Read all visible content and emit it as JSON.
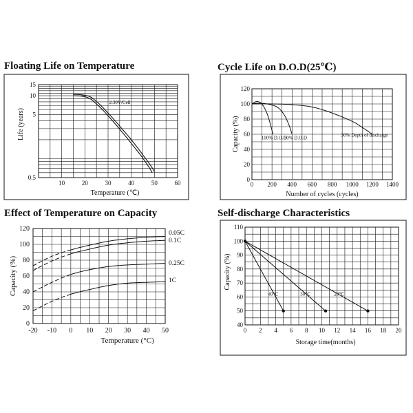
{
  "chart_data": [
    {
      "type": "line",
      "title": "Floating Life on Temperature",
      "xlabel": "Temperature (℃)",
      "ylabel": "Life (years)",
      "yscale": "log",
      "xlim": [
        0,
        60
      ],
      "ylim": [
        0.5,
        15
      ],
      "xticks": [
        "10",
        "20",
        "30",
        "40",
        "50",
        "60"
      ],
      "yticks": [
        "0.5",
        "5",
        "10",
        "15"
      ],
      "series": [
        {
          "name": "2.30V/Cell (upper)",
          "x": [
            15,
            17,
            19,
            21,
            23,
            25,
            30,
            35,
            40,
            45,
            50
          ],
          "y": [
            10.5,
            10.45,
            10.3,
            10.0,
            9.3,
            8.1,
            5.3,
            3.3,
            2.0,
            1.15,
            0.62
          ]
        },
        {
          "name": "2.30V/Cell (lower)",
          "x": [
            15,
            17,
            19,
            21,
            23,
            25,
            30,
            35,
            40,
            45,
            49
          ],
          "y": [
            10.0,
            9.95,
            9.8,
            9.4,
            8.6,
            7.4,
            4.8,
            2.95,
            1.75,
            1.02,
            0.6
          ]
        }
      ],
      "annotations": [
        "2.30V/Cell"
      ]
    },
    {
      "type": "line",
      "title": "Cycle Life on D.O.D(25℃)",
      "xlabel": "Number of cycles (cycles)",
      "ylabel": "Capacity (%)",
      "xlim": [
        0,
        1400
      ],
      "ylim": [
        0,
        120
      ],
      "xticks": [
        "0",
        "200",
        "400",
        "600",
        "800",
        "1000",
        "1200",
        "1400"
      ],
      "yticks": [
        "0",
        "20",
        "40",
        "60",
        "80",
        "100",
        "120"
      ],
      "series": [
        {
          "name": "100% D.O.D",
          "x": [
            0,
            40,
            80,
            120,
            160,
            190,
            210
          ],
          "y": [
            100,
            103,
            102,
            96,
            84,
            70,
            60
          ]
        },
        {
          "name": "50% D.O.D",
          "x": [
            0,
            60,
            150,
            250,
            320,
            370,
            400
          ],
          "y": [
            100,
            101,
            100,
            96,
            86,
            72,
            60
          ]
        },
        {
          "name": "30% Depth of discharge",
          "x": [
            0,
            200,
            400,
            600,
            800,
            1000,
            1100,
            1200
          ],
          "y": [
            100,
            100,
            99,
            96,
            88,
            77,
            69,
            60
          ]
        }
      ],
      "annotations": [
        "100% D.O.D",
        "50% D.O.D",
        "30% Depth of discharge"
      ]
    },
    {
      "type": "line",
      "title": "Effect of Temperature on Capacity",
      "xlabel": "Temperature (°C)",
      "ylabel": "Capacity (%)",
      "xlim": [
        -20,
        50
      ],
      "ylim": [
        0,
        120
      ],
      "xticks": [
        "-20",
        "-10",
        "0",
        "10",
        "20",
        "30",
        "40",
        "50"
      ],
      "yticks": [
        "0",
        "20",
        "40",
        "60",
        "80",
        "100",
        "120"
      ],
      "series": [
        {
          "name": "0.05C",
          "x": [
            -20,
            -10,
            0,
            10,
            20,
            30,
            40,
            50
          ],
          "y": [
            73,
            85,
            93,
            99,
            104,
            107,
            109,
            110
          ]
        },
        {
          "name": "0.1C",
          "x": [
            -20,
            -10,
            0,
            10,
            20,
            30,
            40,
            50
          ],
          "y": [
            67,
            79,
            88,
            94,
            99,
            102,
            104,
            105
          ]
        },
        {
          "name": "0.25C",
          "x": [
            -20,
            -10,
            0,
            10,
            20,
            30,
            40,
            50
          ],
          "y": [
            40,
            52,
            62,
            68,
            72,
            74,
            75,
            76
          ]
        },
        {
          "name": "1C",
          "x": [
            -20,
            -10,
            0,
            10,
            20,
            30,
            40,
            50
          ],
          "y": [
            16,
            28,
            37,
            43,
            48,
            51,
            52,
            53
          ]
        }
      ]
    },
    {
      "type": "line",
      "title": "Self-discharge Characteristics",
      "xlabel": "Storage time(months)",
      "ylabel": "Capacity (%)",
      "xlim": [
        0,
        20
      ],
      "ylim": [
        40,
        110
      ],
      "xticks": [
        "0",
        "2",
        "4",
        "6",
        "8",
        "10",
        "12",
        "14",
        "16",
        "18",
        "20"
      ],
      "yticks": [
        "40",
        "50",
        "60",
        "70",
        "80",
        "90",
        "100",
        "110"
      ],
      "series": [
        {
          "name": "40℃",
          "x": [
            0,
            5
          ],
          "y": [
            100,
            50
          ]
        },
        {
          "name": "30℃",
          "x": [
            0,
            10.5
          ],
          "y": [
            100,
            50
          ]
        },
        {
          "name": "20℃",
          "x": [
            0,
            16
          ],
          "y": [
            100,
            50
          ]
        }
      ]
    }
  ]
}
